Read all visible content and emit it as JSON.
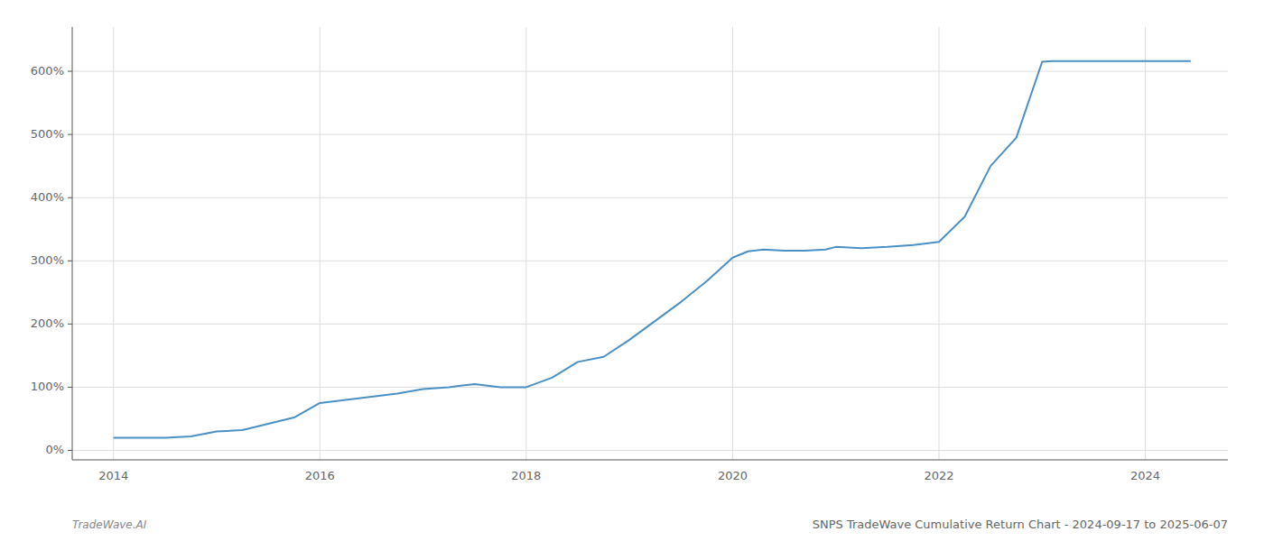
{
  "chart_data": {
    "type": "line",
    "title": "SNPS TradeWave Cumulative Return Chart - 2024-09-17 to 2025-06-07",
    "annotations": [
      "TradeWave.AI"
    ],
    "x": [
      2014.0,
      2014.5,
      2014.75,
      2015.0,
      2015.25,
      2015.5,
      2015.75,
      2016.0,
      2016.25,
      2016.5,
      2016.75,
      2017.0,
      2017.25,
      2017.5,
      2017.75,
      2018.0,
      2018.25,
      2018.5,
      2018.75,
      2019.0,
      2019.25,
      2019.5,
      2019.75,
      2020.0,
      2020.15,
      2020.3,
      2020.5,
      2020.7,
      2020.9,
      2021.0,
      2021.25,
      2021.5,
      2021.75,
      2022.0,
      2022.25,
      2022.5,
      2022.75,
      2023.0,
      2023.1,
      2023.3,
      2023.5,
      2024.0,
      2024.44
    ],
    "values": [
      20,
      20,
      22,
      30,
      32,
      42,
      52,
      75,
      80,
      85,
      90,
      97,
      100,
      105,
      100,
      100,
      115,
      140,
      148,
      175,
      205,
      235,
      268,
      305,
      315,
      318,
      316,
      316,
      318,
      322,
      320,
      322,
      325,
      330,
      370,
      450,
      495,
      615,
      616,
      616,
      616,
      616,
      616
    ],
    "color": "#4a90c4",
    "xlim": [
      2013.6,
      2024.8
    ],
    "ylim": [
      -15,
      670
    ],
    "xticks": [
      2014,
      2016,
      2018,
      2020,
      2022,
      2024
    ],
    "yticks": [
      {
        "value": 0,
        "label": "0%"
      },
      {
        "value": 100,
        "label": "100%"
      },
      {
        "value": 200,
        "label": "200%"
      },
      {
        "value": 300,
        "label": "300%"
      },
      {
        "value": 400,
        "label": "400%"
      },
      {
        "value": 500,
        "label": "500%"
      },
      {
        "value": 600,
        "label": "600%"
      }
    ],
    "grid": true
  }
}
